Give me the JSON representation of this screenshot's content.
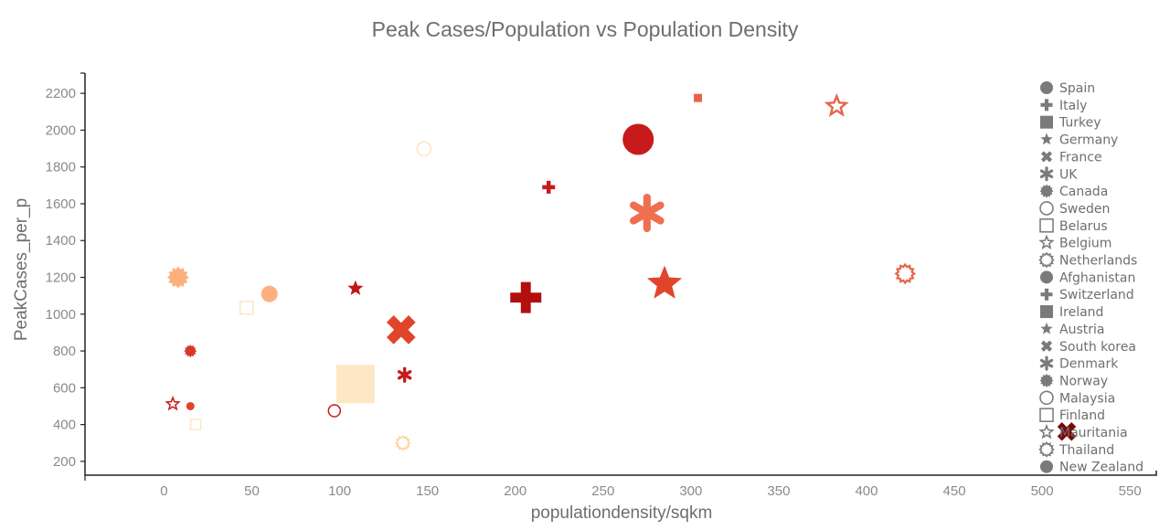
{
  "chart_data": {
    "type": "scatter",
    "title": "Peak Cases/Population vs Population Density",
    "xlabel": "populationdensity/sqkm",
    "ylabel": "PeakCases_per_p",
    "xlim": [
      -45,
      565
    ],
    "ylim": [
      125,
      2310
    ],
    "xticks": [
      0,
      50,
      100,
      150,
      200,
      250,
      300,
      350,
      400,
      450,
      500,
      550
    ],
    "yticks": [
      200,
      400,
      600,
      800,
      1000,
      1200,
      1400,
      1600,
      1800,
      2000,
      2200
    ],
    "grid": false,
    "legend_position": "right",
    "series": [
      {
        "name": "Spain",
        "shape": "circle",
        "x": 270,
        "y": 1950,
        "size": 34,
        "color": "#c81a1a",
        "filled": true
      },
      {
        "name": "Italy",
        "shape": "plus",
        "x": 219,
        "y": 1690,
        "size": 14,
        "color": "#c81a1a",
        "filled": true
      },
      {
        "name": "Turkey",
        "shape": "square",
        "x": 304,
        "y": 2175,
        "size": 9,
        "color": "#e8644a",
        "filled": true
      },
      {
        "name": "Germany",
        "shape": "star",
        "x": 109,
        "y": 1140,
        "size": 18,
        "color": "#c01818",
        "filled": true
      },
      {
        "name": "France",
        "shape": "cross",
        "x": 135,
        "y": 915,
        "size": 34,
        "color": "#e0452c",
        "filled": true
      },
      {
        "name": "UK",
        "shape": "asterisk",
        "x": 137,
        "y": 670,
        "size": 14,
        "color": "#c81a1a",
        "filled": true
      },
      {
        "name": "Canada",
        "shape": "burst",
        "x": 15,
        "y": 800,
        "size": 14,
        "color": "#d43a2a",
        "filled": true
      },
      {
        "name": "Sweden",
        "shape": "circle",
        "x": 148,
        "y": 1898,
        "size": 15,
        "color": "#fde7c4",
        "filled": false
      },
      {
        "name": "Belarus",
        "shape": "square",
        "x": 47,
        "y": 1035,
        "size": 14,
        "color": "#fde7c4",
        "filled": false
      },
      {
        "name": "Belgium",
        "shape": "star",
        "x": 383,
        "y": 2130,
        "size": 22,
        "color": "#e8644a",
        "filled": false
      },
      {
        "name": "Netherlands",
        "shape": "burst",
        "x": 422,
        "y": 1220,
        "size": 20,
        "color": "#e8644a",
        "filled": false
      },
      {
        "name": "Afghanistan",
        "shape": "circle",
        "x": 60,
        "y": 1110,
        "size": 18,
        "color": "#fdb07e",
        "filled": true
      },
      {
        "name": "Switzerland",
        "shape": "plus",
        "x": 206,
        "y": 1090,
        "size": 34,
        "color": "#b30f0f",
        "filled": true
      },
      {
        "name": "Ireland",
        "shape": "square",
        "x": 109,
        "y": 620,
        "size": 42,
        "color": "#fde7c4",
        "filled": true
      },
      {
        "name": "Austria",
        "shape": "star",
        "x": 285,
        "y": 1165,
        "size": 40,
        "color": "#e0452c",
        "filled": true
      },
      {
        "name": "South korea",
        "shape": "cross",
        "x": 514,
        "y": 362,
        "size": 22,
        "color": "#7a0a0a",
        "filled": true
      },
      {
        "name": "Denmark",
        "shape": "asterisk",
        "x": 275,
        "y": 1550,
        "size": 34,
        "color": "#ef7050",
        "filled": true
      },
      {
        "name": "Norway",
        "shape": "burst",
        "x": 8,
        "y": 1200,
        "size": 24,
        "color": "#fdb07e",
        "filled": true
      },
      {
        "name": "Malaysia",
        "shape": "circle",
        "x": 97,
        "y": 475,
        "size": 13,
        "color": "#c81a1a",
        "filled": false
      },
      {
        "name": "Finland",
        "shape": "square",
        "x": 18,
        "y": 400,
        "size": 11,
        "color": "#fde7c4",
        "filled": false
      },
      {
        "name": "Mauritania",
        "shape": "star",
        "x": 5,
        "y": 512,
        "size": 14,
        "color": "#c81a1a",
        "filled": false
      },
      {
        "name": "Thailand",
        "shape": "burst",
        "x": 136,
        "y": 300,
        "size": 15,
        "color": "#fdd49a",
        "filled": false
      },
      {
        "name": "New Zealand",
        "shape": "circle",
        "x": 15,
        "y": 500,
        "size": 9,
        "color": "#e0452c",
        "filled": true
      }
    ]
  }
}
